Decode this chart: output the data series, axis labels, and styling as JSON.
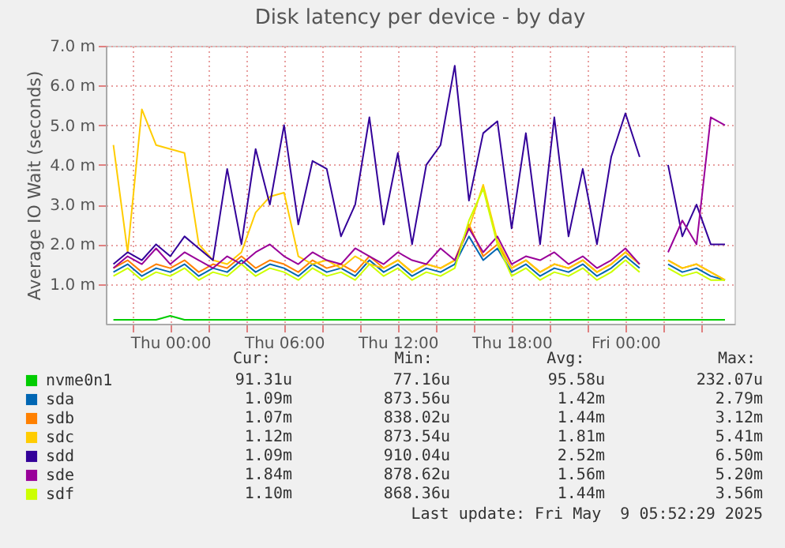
{
  "chart_data": {
    "type": "line",
    "title": "Disk latency per device - by day",
    "ylabel": "Average IO Wait (seconds)",
    "legend": "bottom",
    "grid": true,
    "marker": "none",
    "line_style": "solid",
    "legend_title": "Cur: Min: Avg: Max:",
    "xlim": [
      "2025-05-07T20:36",
      "2025-05-09T05:45"
    ],
    "xticks": [
      {
        "value": "2025-05-07T22:00",
        "label": null
      },
      {
        "value": "2025-05-08T00:00",
        "label": "Thu 00:00"
      },
      {
        "value": "2025-05-08T02:00",
        "label": null
      },
      {
        "value": "2025-05-08T04:00",
        "label": null
      },
      {
        "value": "2025-05-08T06:00",
        "label": "Thu 06:00"
      },
      {
        "value": "2025-05-08T08:00",
        "label": null
      },
      {
        "value": "2025-05-08T10:00",
        "label": null
      },
      {
        "value": "2025-05-08T12:00",
        "label": "Thu 12:00"
      },
      {
        "value": "2025-05-08T14:00",
        "label": null
      },
      {
        "value": "2025-05-08T16:00",
        "label": null
      },
      {
        "value": "2025-05-08T18:00",
        "label": "Thu 18:00"
      },
      {
        "value": "2025-05-08T20:00",
        "label": null
      },
      {
        "value": "2025-05-08T22:00",
        "label": null
      },
      {
        "value": "2025-05-09T00:00",
        "label": "Fri 00:00"
      },
      {
        "value": "2025-05-09T02:00",
        "label": null
      },
      {
        "value": "2025-05-09T04:00",
        "label": null
      }
    ],
    "ylim": [
      0,
      7
    ],
    "yticks": [
      {
        "value": 1,
        "label": "1.0 m"
      },
      {
        "value": 2,
        "label": "2.0 m"
      },
      {
        "value": 3,
        "label": "3.0 m"
      },
      {
        "value": 4,
        "label": "4.0 m"
      },
      {
        "value": 5,
        "label": "5.0 m"
      },
      {
        "value": 6,
        "label": "6.0 m"
      },
      {
        "value": 7,
        "label": "7.0 m"
      }
    ],
    "x": [
      "2025-05-07T21:00",
      "2025-05-07T21:45",
      "2025-05-07T22:30",
      "2025-05-07T23:15",
      "2025-05-08T00:00",
      "2025-05-08T00:45",
      "2025-05-08T01:30",
      "2025-05-08T02:15",
      "2025-05-08T03:00",
      "2025-05-08T03:45",
      "2025-05-08T04:30",
      "2025-05-08T05:15",
      "2025-05-08T06:00",
      "2025-05-08T06:45",
      "2025-05-08T07:30",
      "2025-05-08T08:15",
      "2025-05-08T09:00",
      "2025-05-08T09:45",
      "2025-05-08T10:30",
      "2025-05-08T11:15",
      "2025-05-08T12:00",
      "2025-05-08T12:45",
      "2025-05-08T13:30",
      "2025-05-08T14:15",
      "2025-05-08T15:00",
      "2025-05-08T15:45",
      "2025-05-08T16:30",
      "2025-05-08T17:15",
      "2025-05-08T18:00",
      "2025-05-08T18:45",
      "2025-05-08T19:30",
      "2025-05-08T20:15",
      "2025-05-08T21:00",
      "2025-05-08T21:45",
      "2025-05-08T22:30",
      "2025-05-08T23:15",
      "2025-05-09T00:00",
      "2025-05-09T00:45",
      "2025-05-09T01:30",
      "2025-05-09T02:15",
      "2025-05-09T03:00",
      "2025-05-09T03:45",
      "2025-05-09T04:30",
      "2025-05-09T05:15"
    ],
    "series": [
      {
        "name": "nvme0n1",
        "color": "#00cc00",
        "values": [
          0.1,
          0.1,
          0.1,
          0.1,
          0.2,
          0.1,
          0.1,
          0.1,
          0.1,
          0.1,
          0.1,
          0.1,
          0.1,
          0.1,
          0.1,
          0.1,
          0.1,
          0.1,
          0.1,
          0.1,
          0.1,
          0.1,
          0.1,
          0.1,
          0.1,
          0.1,
          0.1,
          0.1,
          0.1,
          0.1,
          0.1,
          0.1,
          0.1,
          0.1,
          0.1,
          0.1,
          0.1,
          0.1,
          0.1,
          0.1,
          0.1,
          0.1,
          0.1,
          0.1
        ]
      },
      {
        "name": "sda",
        "color": "#0066b3",
        "values": [
          1.3,
          1.5,
          1.2,
          1.4,
          1.3,
          1.5,
          1.2,
          1.4,
          1.3,
          1.6,
          1.3,
          1.5,
          1.4,
          1.2,
          1.5,
          1.3,
          1.4,
          1.2,
          1.6,
          1.3,
          1.5,
          1.2,
          1.4,
          1.3,
          1.5,
          2.2,
          1.6,
          1.9,
          1.3,
          1.5,
          1.2,
          1.4,
          1.3,
          1.5,
          1.2,
          1.4,
          1.7,
          1.4,
          null,
          1.5,
          1.3,
          1.4,
          1.2,
          1.1
        ]
      },
      {
        "name": "sdb",
        "color": "#ff8000",
        "values": [
          1.4,
          1.6,
          1.3,
          1.5,
          1.4,
          1.6,
          1.3,
          1.5,
          1.4,
          1.7,
          1.4,
          1.6,
          1.5,
          1.3,
          1.6,
          1.4,
          1.5,
          1.3,
          1.7,
          1.4,
          1.6,
          1.3,
          1.5,
          1.4,
          1.6,
          2.5,
          1.7,
          2.0,
          1.4,
          1.6,
          1.3,
          1.5,
          1.4,
          1.6,
          1.3,
          1.5,
          1.8,
          1.5,
          null,
          1.6,
          1.4,
          1.5,
          1.3,
          1.1
        ]
      },
      {
        "name": "sdc",
        "color": "#ffcc00",
        "values": [
          4.5,
          1.8,
          5.4,
          4.5,
          4.4,
          4.3,
          2.0,
          1.6,
          1.5,
          1.8,
          2.8,
          3.2,
          3.3,
          1.7,
          1.5,
          1.6,
          1.4,
          1.7,
          1.5,
          1.4,
          1.6,
          1.3,
          1.5,
          1.4,
          1.6,
          2.4,
          3.5,
          2.1,
          1.4,
          1.6,
          1.3,
          1.5,
          1.4,
          1.6,
          1.3,
          1.5,
          1.8,
          1.5,
          null,
          1.6,
          1.4,
          1.5,
          1.3,
          1.1
        ]
      },
      {
        "name": "sdd",
        "color": "#330099",
        "values": [
          1.5,
          1.8,
          1.6,
          2.0,
          1.7,
          2.2,
          1.9,
          1.6,
          3.9,
          2.0,
          4.4,
          3.0,
          5.0,
          2.5,
          4.1,
          3.9,
          2.2,
          3.0,
          5.2,
          2.5,
          4.3,
          2.0,
          4.0,
          4.5,
          6.5,
          3.1,
          4.8,
          5.1,
          2.4,
          4.8,
          2.0,
          5.2,
          2.2,
          3.9,
          2.0,
          4.2,
          5.3,
          4.2,
          null,
          4.0,
          2.2,
          3.0,
          2.0,
          2.0
        ]
      },
      {
        "name": "sde",
        "color": "#990099",
        "values": [
          1.4,
          1.7,
          1.5,
          1.9,
          1.5,
          1.8,
          1.6,
          1.4,
          1.7,
          1.5,
          1.8,
          2.0,
          1.7,
          1.5,
          1.8,
          1.6,
          1.5,
          1.9,
          1.7,
          1.5,
          1.8,
          1.6,
          1.5,
          1.9,
          1.6,
          2.4,
          1.8,
          2.2,
          1.5,
          1.7,
          1.6,
          1.8,
          1.5,
          1.7,
          1.4,
          1.6,
          1.9,
          1.5,
          null,
          1.8,
          2.6,
          2.0,
          5.2,
          5.0
        ]
      },
      {
        "name": "sdf",
        "color": "#ccff00",
        "values": [
          1.2,
          1.4,
          1.1,
          1.3,
          1.2,
          1.4,
          1.1,
          1.3,
          1.2,
          1.5,
          1.2,
          1.4,
          1.3,
          1.1,
          1.4,
          1.2,
          1.3,
          1.1,
          1.5,
          1.2,
          1.4,
          1.1,
          1.3,
          1.2,
          1.4,
          2.6,
          3.4,
          2.0,
          1.2,
          1.4,
          1.1,
          1.3,
          1.2,
          1.4,
          1.1,
          1.3,
          1.6,
          1.3,
          null,
          1.4,
          1.2,
          1.3,
          1.1,
          1.1
        ]
      }
    ],
    "annotations": [
      "91.31u",
      "77.16u",
      "95.58u",
      "232.07u",
      "1.09m",
      "873.56u",
      "1.42m",
      "2.79m",
      "1.07m",
      "838.02u",
      "1.44m",
      "3.12m",
      "1.12m",
      "873.54u",
      "1.81m",
      "5.41m",
      "1.09m",
      "910.04u",
      "2.52m",
      "6.50m",
      "1.84m",
      "878.62u",
      "1.56m",
      "5.20m",
      "1.10m",
      "868.36u",
      "1.44m",
      "3.56m",
      "Last update: Fri May  9 05:52:29 2025"
    ]
  }
}
